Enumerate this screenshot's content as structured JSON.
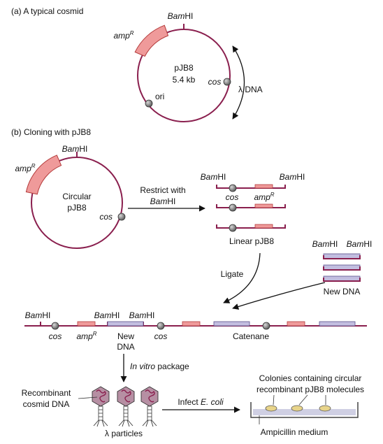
{
  "section_a": {
    "title": "(a) A typical cosmid",
    "plasmid_name": "pJB8",
    "plasmid_size": "5.4 kb",
    "bamhi": {
      "italic": "Bam",
      "roman": "HI"
    },
    "amp": {
      "base": "amp",
      "sup": "R"
    },
    "cos": "cos",
    "ori": "ori",
    "lambda_dna": "λ DNA"
  },
  "section_b": {
    "title": "(b) Cloning with pJB8",
    "circular_label": [
      "Circular",
      "pJB8"
    ],
    "restrict_label": "Restrict with",
    "restrict_enzyme": {
      "italic": "Bam",
      "roman": "HI"
    },
    "linear_label": "Linear pJB8",
    "ligate_label": "Ligate",
    "new_dna_label": "New DNA",
    "catenane_label": "Catenane",
    "new_dna_two_lines": [
      "New",
      "DNA"
    ],
    "in_vitro_label": {
      "italic": "In vitro",
      "roman": " package"
    },
    "recombinant_label": [
      "Recombinant",
      "cosmid DNA"
    ],
    "infect_label": {
      "roman": "Infect ",
      "italic": "E. coli"
    },
    "lambda_particles": "λ particles",
    "colonies_label": [
      "Colonies containing circular",
      "recombinant pJB8 molecules"
    ],
    "medium_label": "Ampicillin medium"
  },
  "colors": {
    "backbone": "#8a1f4e",
    "amp_fill": "#ef9a9a",
    "amp_stroke": "#b33a3a",
    "newdna_fill": "#c2bee0",
    "newdna_stroke": "#5a4f8a",
    "cos_fill": "#8a8a8a",
    "particle_fill": "#b68fa3",
    "colony_fill": "#e8d48a",
    "dish_fill": "#cfcfe3"
  }
}
